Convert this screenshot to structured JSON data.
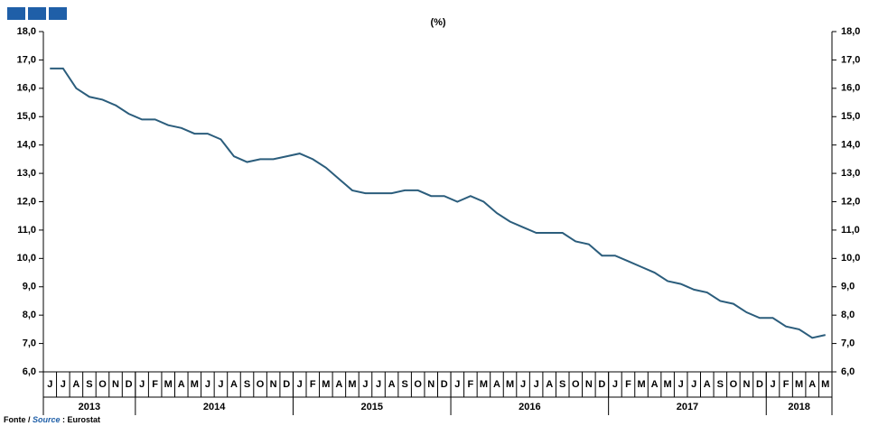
{
  "chart_data": {
    "type": "line",
    "subtitle": "(%)",
    "categories": [
      "J",
      "J",
      "A",
      "S",
      "O",
      "N",
      "D",
      "J",
      "F",
      "M",
      "A",
      "M",
      "J",
      "J",
      "A",
      "S",
      "O",
      "N",
      "D",
      "J",
      "F",
      "M",
      "A",
      "M",
      "J",
      "J",
      "A",
      "S",
      "O",
      "N",
      "D",
      "J",
      "F",
      "M",
      "A",
      "M",
      "J",
      "J",
      "A",
      "S",
      "O",
      "N",
      "D",
      "J",
      "F",
      "M",
      "A",
      "M",
      "J",
      "J",
      "A",
      "S",
      "O",
      "N",
      "D",
      "J",
      "F",
      "M",
      "A",
      "M"
    ],
    "years": [
      "2013",
      "2014",
      "2015",
      "2016",
      "2017",
      "2018"
    ],
    "series": [
      {
        "color": "#2b5d7c",
        "values": [
          16.7,
          16.7,
          16.0,
          15.7,
          15.6,
          15.4,
          15.1,
          14.9,
          14.9,
          14.7,
          14.6,
          14.4,
          14.4,
          14.2,
          13.6,
          13.4,
          13.5,
          13.5,
          13.6,
          13.7,
          13.5,
          13.2,
          12.8,
          12.4,
          12.3,
          12.3,
          12.3,
          12.4,
          12.4,
          12.2,
          12.2,
          12.0,
          12.2,
          12.0,
          11.6,
          11.3,
          11.1,
          10.9,
          10.9,
          10.9,
          10.6,
          10.5,
          10.1,
          10.1,
          9.9,
          9.7,
          9.5,
          9.2,
          9.1,
          8.9,
          8.8,
          8.5,
          8.4,
          8.1,
          7.9,
          7.9,
          7.6,
          7.5,
          7.2,
          7.3
        ]
      }
    ],
    "ylim": [
      6,
      18
    ],
    "yticks": [
      {
        "value": 6,
        "label": "6,0"
      },
      {
        "value": 7,
        "label": "7,0"
      },
      {
        "value": 8,
        "label": "8,0"
      },
      {
        "value": 9,
        "label": "9,0"
      },
      {
        "value": 10,
        "label": "10,0"
      },
      {
        "value": 11,
        "label": "11,0"
      },
      {
        "value": 12,
        "label": "12,0"
      },
      {
        "value": 13,
        "label": "13,0"
      },
      {
        "value": 14,
        "label": "14,0"
      },
      {
        "value": 15,
        "label": "15,0"
      },
      {
        "value": 16,
        "label": "16,0"
      },
      {
        "value": 17,
        "label": "17,0"
      },
      {
        "value": 18,
        "label": "18,0"
      }
    ],
    "source": {
      "prefix": "Fonte /",
      "word": "Source",
      "rest": ": Eurostat"
    }
  }
}
